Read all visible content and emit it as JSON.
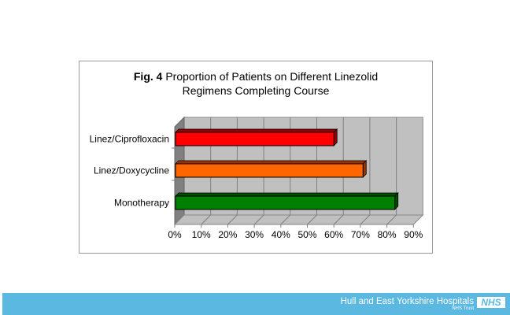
{
  "chart_data": {
    "type": "bar",
    "orientation": "horizontal",
    "style": "3d",
    "title_prefix": "Fig. 4",
    "title_line1": "Proportion of Patients on Different Linezolid",
    "title_line2": "Regimens Completing Course",
    "categories": [
      "Linez/Ciprofloxacin",
      "Linez/Doxycycline",
      "Monotherapy"
    ],
    "values": [
      60,
      71,
      83
    ],
    "colors": [
      "#ff0000",
      "#ff6600",
      "#008000"
    ],
    "side_colors": [
      "#990000",
      "#993300",
      "#004d00"
    ],
    "xlim": [
      0,
      90
    ],
    "xticks": [
      "0%",
      "10%",
      "20%",
      "30%",
      "40%",
      "50%",
      "60%",
      "70%",
      "80%",
      "90%"
    ],
    "xlabel": "",
    "ylabel": "",
    "grid": true,
    "legend": "none"
  },
  "footer": {
    "organization": "Hull and East Yorkshire Hospitals",
    "trust": "NHS Trust",
    "logo": "NHS",
    "band_color": "#5bb8e0"
  }
}
